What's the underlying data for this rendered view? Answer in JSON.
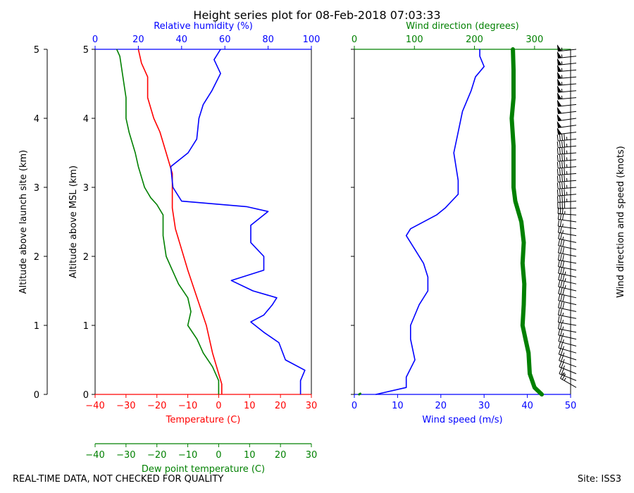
{
  "title": "Height series plot for 08-Feb-2018 07:03:33",
  "footer": {
    "left": "REAL-TIME DATA, NOT CHECKED FOR QUALITY",
    "right": "Site: ISS3"
  },
  "colors": {
    "temperature": "#ff0000",
    "dewpoint": "#008000",
    "rh": "#0000ff",
    "speed": "#0000ff",
    "direction": "#008000",
    "axis": "#000000",
    "barbs": "#000000"
  },
  "chart_data": [
    {
      "type": "line",
      "name": "thermo-panel",
      "ylabel_outer": "Altitude above launch site (km)",
      "ylabel": "Altitude above MSL (km)",
      "ylim": [
        0,
        5
      ],
      "yticks": [
        0,
        1,
        2,
        3,
        4,
        5
      ],
      "bottom_axis": {
        "label": "Temperature (C)",
        "lim": [
          -40,
          30
        ],
        "ticks": [
          -40,
          -30,
          -20,
          -10,
          0,
          10,
          20,
          30
        ]
      },
      "bottom_axis2": {
        "label": "Dew point temperature (C)",
        "lim": [
          -40,
          30
        ],
        "ticks": [
          -40,
          -30,
          -20,
          -10,
          0,
          10,
          20,
          30
        ]
      },
      "top_axis": {
        "label": "Relative humidity (%)",
        "lim": [
          0,
          100
        ],
        "ticks": [
          0,
          20,
          40,
          60,
          80,
          100
        ]
      },
      "series": [
        {
          "name": "Temperature",
          "axis": "temperature",
          "points": [
            [
              1,
              0
            ],
            [
              1,
              0.15
            ],
            [
              0,
              0.3
            ],
            [
              -2,
              0.6
            ],
            [
              -4,
              1
            ],
            [
              -7,
              1.4
            ],
            [
              -10,
              1.8
            ],
            [
              -12,
              2.1
            ],
            [
              -14,
              2.4
            ],
            [
              -15,
              2.7
            ],
            [
              -15,
              3.0
            ],
            [
              -15,
              3.2
            ],
            [
              -17,
              3.5
            ],
            [
              -19,
              3.8
            ],
            [
              -21,
              4.0
            ],
            [
              -23,
              4.3
            ],
            [
              -23,
              4.6
            ],
            [
              -25,
              4.8
            ],
            [
              -26,
              5.0
            ]
          ]
        },
        {
          "name": "Dew point temperature",
          "axis": "dewpoint",
          "points": [
            [
              0,
              0
            ],
            [
              0,
              0.2
            ],
            [
              -2,
              0.4
            ],
            [
              -5,
              0.6
            ],
            [
              -7,
              0.8
            ],
            [
              -10,
              1.0
            ],
            [
              -9,
              1.2
            ],
            [
              -10,
              1.4
            ],
            [
              -13,
              1.6
            ],
            [
              -15,
              1.8
            ],
            [
              -17,
              2.0
            ],
            [
              -18,
              2.3
            ],
            [
              -18,
              2.6
            ],
            [
              -20,
              2.75
            ],
            [
              -22,
              2.85
            ],
            [
              -24,
              3.0
            ],
            [
              -26,
              3.3
            ],
            [
              -27,
              3.5
            ],
            [
              -29,
              3.8
            ],
            [
              -30,
              4.0
            ],
            [
              -30,
              4.3
            ],
            [
              -31,
              4.6
            ],
            [
              -32,
              4.9
            ],
            [
              -33,
              5.0
            ]
          ]
        },
        {
          "name": "Relative humidity",
          "axis": "rh",
          "points": [
            [
              95,
              0
            ],
            [
              95,
              0.2
            ],
            [
              97,
              0.35
            ],
            [
              88,
              0.5
            ],
            [
              85,
              0.75
            ],
            [
              78,
              0.9
            ],
            [
              72,
              1.05
            ],
            [
              78,
              1.15
            ],
            [
              82,
              1.3
            ],
            [
              84,
              1.4
            ],
            [
              73,
              1.5
            ],
            [
              63,
              1.65
            ],
            [
              78,
              1.8
            ],
            [
              78,
              2.0
            ],
            [
              72,
              2.2
            ],
            [
              72,
              2.45
            ],
            [
              80,
              2.65
            ],
            [
              70,
              2.72
            ],
            [
              40,
              2.8
            ],
            [
              36,
              3.0
            ],
            [
              35,
              3.3
            ],
            [
              43,
              3.5
            ],
            [
              47,
              3.7
            ],
            [
              48,
              4.0
            ],
            [
              50,
              4.2
            ],
            [
              54,
              4.4
            ],
            [
              58,
              4.65
            ],
            [
              55,
              4.85
            ],
            [
              58,
              5.0
            ]
          ]
        }
      ]
    },
    {
      "type": "line",
      "name": "wind-panel",
      "ylim": [
        0,
        5
      ],
      "bottom_axis": {
        "label": "Wind speed (m/s)",
        "lim": [
          0,
          50
        ],
        "ticks": [
          0,
          10,
          20,
          30,
          40,
          50
        ]
      },
      "top_axis": {
        "label": "Wind direction (degrees)",
        "lim": [
          0,
          360
        ],
        "ticks": [
          0,
          100,
          200,
          300
        ]
      },
      "right_label": "Wind direction and speed (knots)",
      "series": [
        {
          "name": "Wind speed",
          "axis": "speed",
          "points": [
            [
              5,
              0
            ],
            [
              12,
              0.1
            ],
            [
              12,
              0.25
            ],
            [
              14,
              0.5
            ],
            [
              13,
              0.8
            ],
            [
              13,
              1.0
            ],
            [
              15,
              1.3
            ],
            [
              17,
              1.5
            ],
            [
              17,
              1.7
            ],
            [
              16,
              1.9
            ],
            [
              14,
              2.1
            ],
            [
              12,
              2.3
            ],
            [
              13,
              2.4
            ],
            [
              19,
              2.6
            ],
            [
              21,
              2.7
            ],
            [
              24,
              2.9
            ],
            [
              24,
              3.1
            ],
            [
              23,
              3.5
            ],
            [
              24,
              3.8
            ],
            [
              25,
              4.1
            ],
            [
              27,
              4.4
            ],
            [
              28,
              4.6
            ],
            [
              30,
              4.75
            ],
            [
              29,
              4.9
            ],
            [
              29,
              5.0
            ]
          ]
        },
        {
          "name": "Wind direction",
          "axis": "direction",
          "points": [
            [
              312,
              0
            ],
            [
              300,
              0.1
            ],
            [
              292,
              0.3
            ],
            [
              290,
              0.6
            ],
            [
              285,
              0.8
            ],
            [
              280,
              1.0
            ],
            [
              282,
              1.3
            ],
            [
              283,
              1.6
            ],
            [
              280,
              1.9
            ],
            [
              282,
              2.2
            ],
            [
              278,
              2.5
            ],
            [
              268,
              2.8
            ],
            [
              265,
              3.0
            ],
            [
              265,
              3.3
            ],
            [
              265,
              3.6
            ],
            [
              262,
              4.0
            ],
            [
              265,
              4.3
            ],
            [
              265,
              4.7
            ],
            [
              264,
              5.0
            ]
          ]
        },
        {
          "name": "Surface marker",
          "axis": "direction",
          "points": [
            [
              8,
              0
            ],
            [
              10,
              0.01
            ]
          ]
        }
      ],
      "barbs": [
        {
          "z": 0.1,
          "dir": 300,
          "spd": 24
        },
        {
          "z": 0.2,
          "dir": 292,
          "spd": 25
        },
        {
          "z": 0.3,
          "dir": 292,
          "spd": 26
        },
        {
          "z": 0.4,
          "dir": 290,
          "spd": 27
        },
        {
          "z": 0.5,
          "dir": 288,
          "spd": 27
        },
        {
          "z": 0.6,
          "dir": 286,
          "spd": 26
        },
        {
          "z": 0.7,
          "dir": 285,
          "spd": 25
        },
        {
          "z": 0.8,
          "dir": 283,
          "spd": 25
        },
        {
          "z": 0.9,
          "dir": 281,
          "spd": 25
        },
        {
          "z": 1.0,
          "dir": 280,
          "spd": 26
        },
        {
          "z": 1.1,
          "dir": 281,
          "spd": 27
        },
        {
          "z": 1.2,
          "dir": 282,
          "spd": 28
        },
        {
          "z": 1.3,
          "dir": 283,
          "spd": 29
        },
        {
          "z": 1.4,
          "dir": 283,
          "spd": 31
        },
        {
          "z": 1.5,
          "dir": 283,
          "spd": 33
        },
        {
          "z": 1.6,
          "dir": 283,
          "spd": 33
        },
        {
          "z": 1.7,
          "dir": 282,
          "spd": 33
        },
        {
          "z": 1.8,
          "dir": 281,
          "spd": 32
        },
        {
          "z": 1.9,
          "dir": 280,
          "spd": 31
        },
        {
          "z": 2.0,
          "dir": 281,
          "spd": 30
        },
        {
          "z": 2.1,
          "dir": 282,
          "spd": 28
        },
        {
          "z": 2.2,
          "dir": 282,
          "spd": 26
        },
        {
          "z": 2.3,
          "dir": 280,
          "spd": 24
        },
        {
          "z": 2.4,
          "dir": 278,
          "spd": 25
        },
        {
          "z": 2.5,
          "dir": 278,
          "spd": 30
        },
        {
          "z": 2.6,
          "dir": 274,
          "spd": 37
        },
        {
          "z": 2.7,
          "dir": 268,
          "spd": 41
        },
        {
          "z": 2.8,
          "dir": 266,
          "spd": 44
        },
        {
          "z": 2.9,
          "dir": 265,
          "spd": 46
        },
        {
          "z": 3.0,
          "dir": 265,
          "spd": 47
        },
        {
          "z": 3.1,
          "dir": 265,
          "spd": 47
        },
        {
          "z": 3.2,
          "dir": 265,
          "spd": 46
        },
        {
          "z": 3.3,
          "dir": 265,
          "spd": 45
        },
        {
          "z": 3.4,
          "dir": 265,
          "spd": 45
        },
        {
          "z": 3.5,
          "dir": 265,
          "spd": 45
        },
        {
          "z": 3.6,
          "dir": 264,
          "spd": 46
        },
        {
          "z": 3.7,
          "dir": 264,
          "spd": 47
        },
        {
          "z": 3.8,
          "dir": 263,
          "spd": 48
        },
        {
          "z": 3.9,
          "dir": 262,
          "spd": 49
        },
        {
          "z": 4.0,
          "dir": 262,
          "spd": 50
        },
        {
          "z": 4.1,
          "dir": 263,
          "spd": 51
        },
        {
          "z": 4.2,
          "dir": 264,
          "spd": 52
        },
        {
          "z": 4.3,
          "dir": 265,
          "spd": 53
        },
        {
          "z": 4.4,
          "dir": 265,
          "spd": 54
        },
        {
          "z": 4.5,
          "dir": 265,
          "spd": 55
        },
        {
          "z": 4.6,
          "dir": 265,
          "spd": 56
        },
        {
          "z": 4.7,
          "dir": 265,
          "spd": 57
        },
        {
          "z": 4.8,
          "dir": 264,
          "spd": 57
        },
        {
          "z": 4.9,
          "dir": 264,
          "spd": 57
        },
        {
          "z": 5.0,
          "dir": 264,
          "spd": 57
        }
      ]
    }
  ]
}
